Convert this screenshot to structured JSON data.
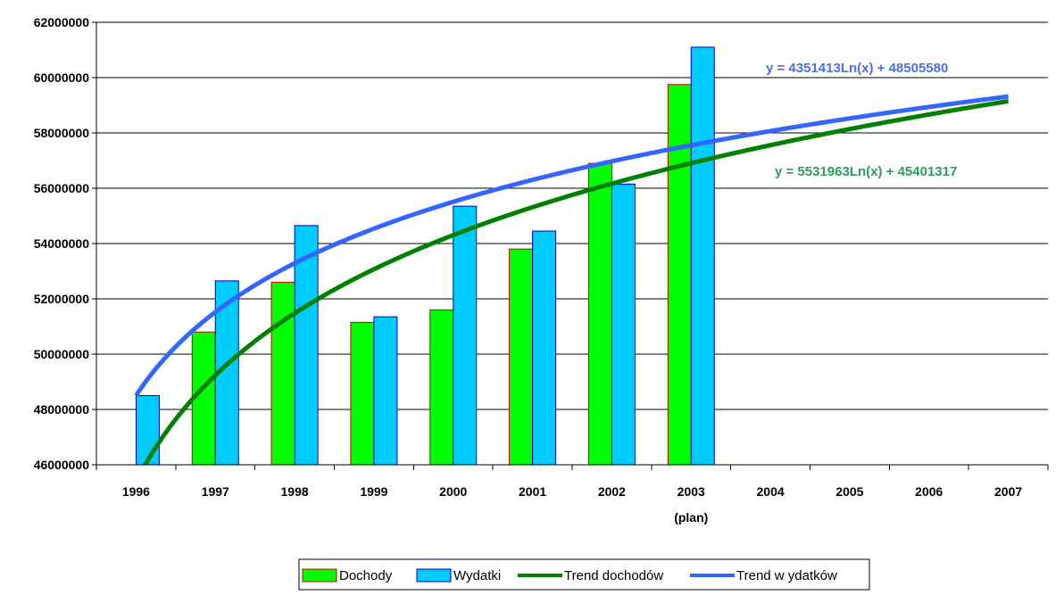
{
  "chart_data": {
    "type": "bar",
    "categories": [
      "1996",
      "1997",
      "1998",
      "1999",
      "2000",
      "2001",
      "2002",
      "2003",
      "2004",
      "2005",
      "2006",
      "2007"
    ],
    "category_sublabels": [
      "",
      "",
      "",
      "",
      "",
      "",
      "",
      "(plan)",
      "",
      "",
      "",
      ""
    ],
    "series": [
      {
        "name": "Dochody",
        "values": [
          null,
          50800000,
          52600000,
          51150000,
          51600000,
          53800000,
          56900000,
          59750000,
          null,
          null,
          null,
          null
        ],
        "fill": "#00ff00",
        "stroke": "#cc0000"
      },
      {
        "name": "Wydatki",
        "values": [
          48500000,
          52650000,
          54650000,
          51350000,
          55350000,
          54450000,
          56150000,
          61100000,
          null,
          null,
          null,
          null
        ],
        "fill": "#00ccff",
        "stroke": "#0000cc"
      }
    ],
    "trendlines": [
      {
        "name": "Trend dochodów",
        "kind": "logarithmic",
        "a": 5531963,
        "b": 45401317,
        "equation": "y = 5531963Ln(x) + 45401317",
        "color": "#008000"
      },
      {
        "name": "Trend w ydatków",
        "kind": "logarithmic",
        "a": 4351413,
        "b": 48505580,
        "equation": "y = 4351413Ln(x) + 48505580",
        "color": "#3366ff"
      }
    ],
    "y_ticks": [
      "46000000",
      "48000000",
      "50000000",
      "52000000",
      "54000000",
      "56000000",
      "58000000",
      "60000000",
      "62000000"
    ],
    "ylim": [
      46000000,
      62000000
    ],
    "grid": "horizontal",
    "legend_position": "bottom"
  }
}
